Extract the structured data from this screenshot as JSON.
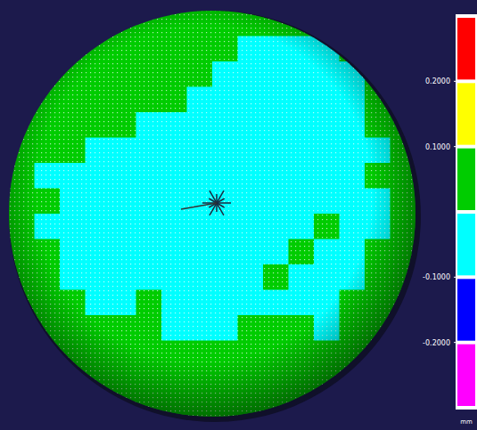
{
  "chart_data": {
    "type": "heatmap",
    "colorbar": {
      "range": [
        -0.3,
        0.3
      ],
      "ticks": [
        {
          "value": 0.2,
          "label": "0.2000"
        },
        {
          "value": 0.1,
          "label": "0.1000"
        },
        {
          "value": -0.1,
          "label": "-0.1000"
        },
        {
          "value": -0.2,
          "label": "-0.2000"
        }
      ],
      "bins": [
        {
          "min": 0.2,
          "max": 0.3,
          "color": "#ff0000"
        },
        {
          "min": 0.1,
          "max": 0.2,
          "color": "#ffff00"
        },
        {
          "min": 0.0,
          "max": 0.1,
          "color": "#00cc00"
        },
        {
          "min": -0.1,
          "max": 0.0,
          "color": "#00ffff"
        },
        {
          "min": -0.2,
          "max": -0.1,
          "color": "#0000ff"
        },
        {
          "min": -0.3,
          "max": -0.2,
          "color": "#ff00ff"
        }
      ],
      "unit": "mm"
    },
    "cells": [
      [
        0.05,
        0.05,
        0.05,
        0.05,
        0.05,
        0.05,
        0.05,
        0.05,
        0.05,
        0.05,
        0.05,
        0.05,
        0.05,
        0.05,
        0.05,
        0.05
      ],
      [
        0.05,
        0.05,
        0.05,
        0.05,
        0.05,
        0.05,
        0.05,
        0.05,
        0.05,
        -0.05,
        -0.05,
        -0.05,
        -0.05,
        0.05,
        0.05,
        0.05
      ],
      [
        0.05,
        0.05,
        0.05,
        0.05,
        0.05,
        0.05,
        0.05,
        0.05,
        -0.05,
        -0.05,
        -0.05,
        -0.05,
        -0.05,
        -0.05,
        0.05,
        0.05
      ],
      [
        0.05,
        0.05,
        0.05,
        0.05,
        0.05,
        0.05,
        0.05,
        -0.05,
        -0.05,
        -0.05,
        -0.05,
        -0.05,
        -0.05,
        -0.05,
        0.05,
        0.05
      ],
      [
        0.05,
        0.05,
        0.05,
        0.05,
        0.05,
        -0.05,
        -0.05,
        -0.05,
        -0.05,
        -0.05,
        -0.05,
        -0.05,
        -0.05,
        -0.05,
        0.05,
        0.05
      ],
      [
        0.05,
        0.05,
        0.05,
        -0.05,
        -0.05,
        -0.05,
        -0.05,
        -0.05,
        -0.05,
        -0.05,
        -0.05,
        -0.05,
        -0.05,
        -0.05,
        -0.05,
        0.05
      ],
      [
        0.05,
        -0.05,
        -0.05,
        -0.05,
        -0.05,
        -0.05,
        -0.05,
        -0.05,
        -0.05,
        -0.05,
        -0.05,
        -0.05,
        -0.05,
        -0.05,
        0.05,
        0.05
      ],
      [
        0.05,
        0.05,
        -0.05,
        -0.05,
        -0.05,
        -0.05,
        -0.05,
        -0.05,
        -0.05,
        -0.05,
        -0.05,
        -0.05,
        -0.05,
        -0.05,
        -0.05,
        0.05
      ],
      [
        0.05,
        -0.05,
        -0.05,
        -0.05,
        -0.05,
        -0.05,
        -0.05,
        -0.05,
        -0.05,
        -0.05,
        -0.05,
        -0.05,
        0.05,
        -0.05,
        -0.05,
        0.05
      ],
      [
        0.05,
        0.05,
        -0.05,
        -0.05,
        -0.05,
        -0.05,
        -0.05,
        -0.05,
        -0.05,
        -0.05,
        -0.05,
        0.05,
        -0.05,
        -0.05,
        0.05,
        0.05
      ],
      [
        0.05,
        0.05,
        -0.05,
        -0.05,
        -0.05,
        -0.05,
        -0.05,
        -0.05,
        -0.05,
        -0.05,
        0.05,
        -0.05,
        -0.05,
        -0.05,
        0.05,
        0.05
      ],
      [
        0.05,
        0.05,
        0.05,
        -0.05,
        -0.05,
        0.05,
        -0.05,
        -0.05,
        -0.05,
        -0.05,
        -0.05,
        -0.05,
        -0.05,
        0.05,
        0.05,
        0.05
      ],
      [
        0.05,
        0.05,
        0.05,
        0.05,
        0.05,
        0.05,
        -0.05,
        -0.05,
        -0.05,
        0.05,
        0.05,
        0.05,
        -0.05,
        0.05,
        0.05,
        0.05
      ],
      [
        0.05,
        0.05,
        0.05,
        0.05,
        0.05,
        0.05,
        0.05,
        0.05,
        0.05,
        0.05,
        0.05,
        0.05,
        0.05,
        0.05,
        0.05,
        0.05
      ],
      [
        0.05,
        0.05,
        0.05,
        0.05,
        0.05,
        0.05,
        0.05,
        0.05,
        0.05,
        0.05,
        0.05,
        0.05,
        0.05,
        0.05,
        0.05,
        0.05
      ],
      [
        0.05,
        0.05,
        0.05,
        0.05,
        0.05,
        0.05,
        0.05,
        0.05,
        0.05,
        0.05,
        0.05,
        0.05,
        0.05,
        0.05,
        0.05,
        0.05
      ]
    ]
  }
}
